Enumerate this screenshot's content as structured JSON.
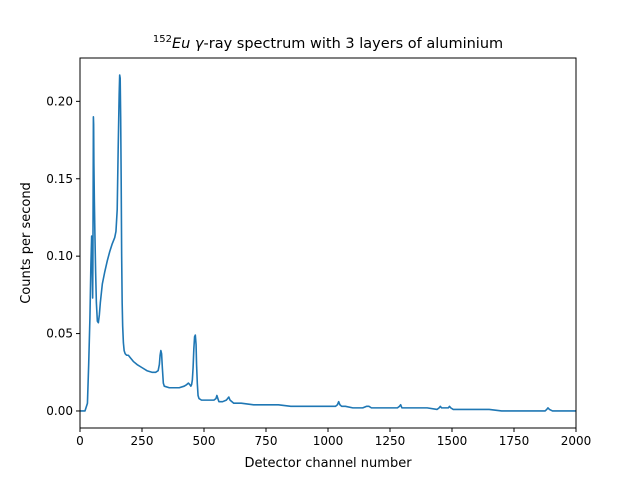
{
  "chart_data": {
    "type": "line",
    "title": {
      "superscript": "152",
      "symbol": "Eu",
      "gamma": "γ",
      "rest": "-ray spectrum with 3 layers of aluminium"
    },
    "xlabel": "Detector channel number",
    "ylabel": "Counts per second",
    "xlim": [
      0,
      2000
    ],
    "ylim": [
      -0.011,
      0.228
    ],
    "x_ticks": [
      0,
      250,
      500,
      750,
      1000,
      1250,
      1500,
      1750,
      2000
    ],
    "y_ticks": [
      0.0,
      0.05,
      0.1,
      0.15,
      0.2
    ],
    "x_tick_labels": [
      "0",
      "250",
      "500",
      "750",
      "1000",
      "1250",
      "1500",
      "1750",
      "2000"
    ],
    "y_tick_labels": [
      "0.00",
      "0.05",
      "0.10",
      "0.15",
      "0.20"
    ],
    "grid": false,
    "line_color": "#1f77b4",
    "series": [
      {
        "x": [
          0,
          20,
          30,
          35,
          40,
          44,
          47,
          49,
          51,
          52,
          53,
          54,
          55,
          56,
          58,
          60,
          63,
          66,
          70,
          74,
          78,
          82,
          90,
          100,
          110,
          120,
          130,
          140,
          145,
          150,
          154,
          158,
          160,
          162,
          164,
          166,
          168,
          170,
          172,
          175,
          178,
          182,
          188,
          195,
          205,
          215,
          230,
          250,
          270,
          290,
          305,
          315,
          320,
          323,
          326,
          329,
          332,
          336,
          340,
          360,
          380,
          400,
          420,
          430,
          437,
          443,
          447,
          450,
          453,
          456,
          459,
          462,
          465,
          468,
          470,
          473,
          476,
          480,
          490,
          500,
          520,
          540,
          548,
          552,
          556,
          560,
          575,
          590,
          595,
          600,
          605,
          620,
          650,
          700,
          750,
          800,
          850,
          900,
          950,
          1000,
          1030,
          1038,
          1043,
          1048,
          1055,
          1070,
          1100,
          1140,
          1155,
          1160,
          1165,
          1175,
          1200,
          1250,
          1280,
          1288,
          1293,
          1298,
          1310,
          1350,
          1400,
          1440,
          1448,
          1453,
          1458,
          1470,
          1485,
          1490,
          1495,
          1505,
          1550,
          1600,
          1650,
          1700,
          1750,
          1800,
          1850,
          1875,
          1882,
          1887,
          1893,
          1905,
          1950,
          2000
        ],
        "y": [
          0.0,
          0.0,
          0.005,
          0.03,
          0.06,
          0.095,
          0.113,
          0.1,
          0.073,
          0.095,
          0.14,
          0.19,
          0.185,
          0.16,
          0.135,
          0.115,
          0.09,
          0.07,
          0.058,
          0.057,
          0.062,
          0.07,
          0.082,
          0.09,
          0.097,
          0.103,
          0.108,
          0.112,
          0.116,
          0.13,
          0.17,
          0.205,
          0.217,
          0.215,
          0.19,
          0.15,
          0.1,
          0.07,
          0.055,
          0.044,
          0.039,
          0.037,
          0.036,
          0.036,
          0.034,
          0.032,
          0.03,
          0.028,
          0.026,
          0.025,
          0.025,
          0.026,
          0.03,
          0.036,
          0.039,
          0.037,
          0.028,
          0.018,
          0.016,
          0.015,
          0.015,
          0.015,
          0.016,
          0.017,
          0.018,
          0.017,
          0.016,
          0.017,
          0.02,
          0.028,
          0.04,
          0.048,
          0.049,
          0.043,
          0.03,
          0.018,
          0.01,
          0.008,
          0.007,
          0.007,
          0.007,
          0.007,
          0.008,
          0.01,
          0.008,
          0.006,
          0.006,
          0.007,
          0.008,
          0.009,
          0.007,
          0.005,
          0.005,
          0.004,
          0.004,
          0.004,
          0.003,
          0.003,
          0.003,
          0.003,
          0.003,
          0.004,
          0.006,
          0.004,
          0.003,
          0.003,
          0.002,
          0.002,
          0.003,
          0.003,
          0.003,
          0.002,
          0.002,
          0.002,
          0.002,
          0.003,
          0.004,
          0.002,
          0.002,
          0.002,
          0.002,
          0.001,
          0.002,
          0.003,
          0.002,
          0.002,
          0.002,
          0.003,
          0.002,
          0.001,
          0.001,
          0.001,
          0.001,
          0.0,
          0.0,
          0.0,
          0.0,
          0.0,
          0.001,
          0.002,
          0.001,
          0.0,
          0.0,
          0.0
        ]
      }
    ]
  }
}
